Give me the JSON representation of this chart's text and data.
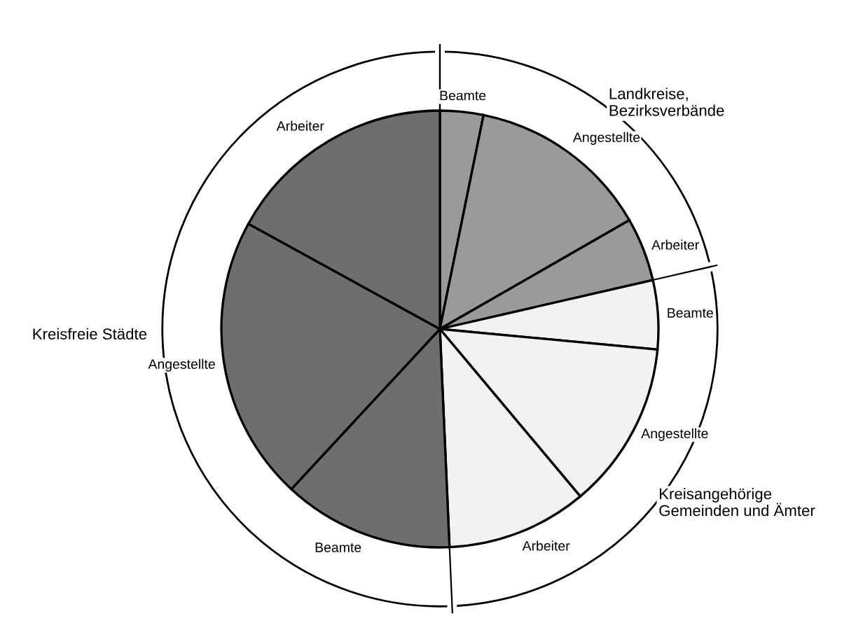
{
  "chart_data": {
    "type": "pie",
    "categories": [
      "Beamte",
      "Angestellte",
      "Arbeiter",
      "Beamte",
      "Angestellte",
      "Arbeiter",
      "Beamte",
      "Angestellte",
      "Arbeiter"
    ],
    "values": [
      3.2,
      13.5,
      4.7,
      5.1,
      12.4,
      10.4,
      12.6,
      21.1,
      17.0
    ],
    "colors": [
      "#9a9a9a",
      "#9a9a9a",
      "#9a9a9a",
      "#f2f2f2",
      "#f2f2f2",
      "#f2f2f2",
      "#6e6e6e",
      "#6e6e6e",
      "#6e6e6e"
    ],
    "annotations": [
      "Landkreise,\nBezirksverbände",
      "Kreisangehörige\nGemeinden und Ämter",
      "Kreisfreie Städte"
    ]
  }
}
